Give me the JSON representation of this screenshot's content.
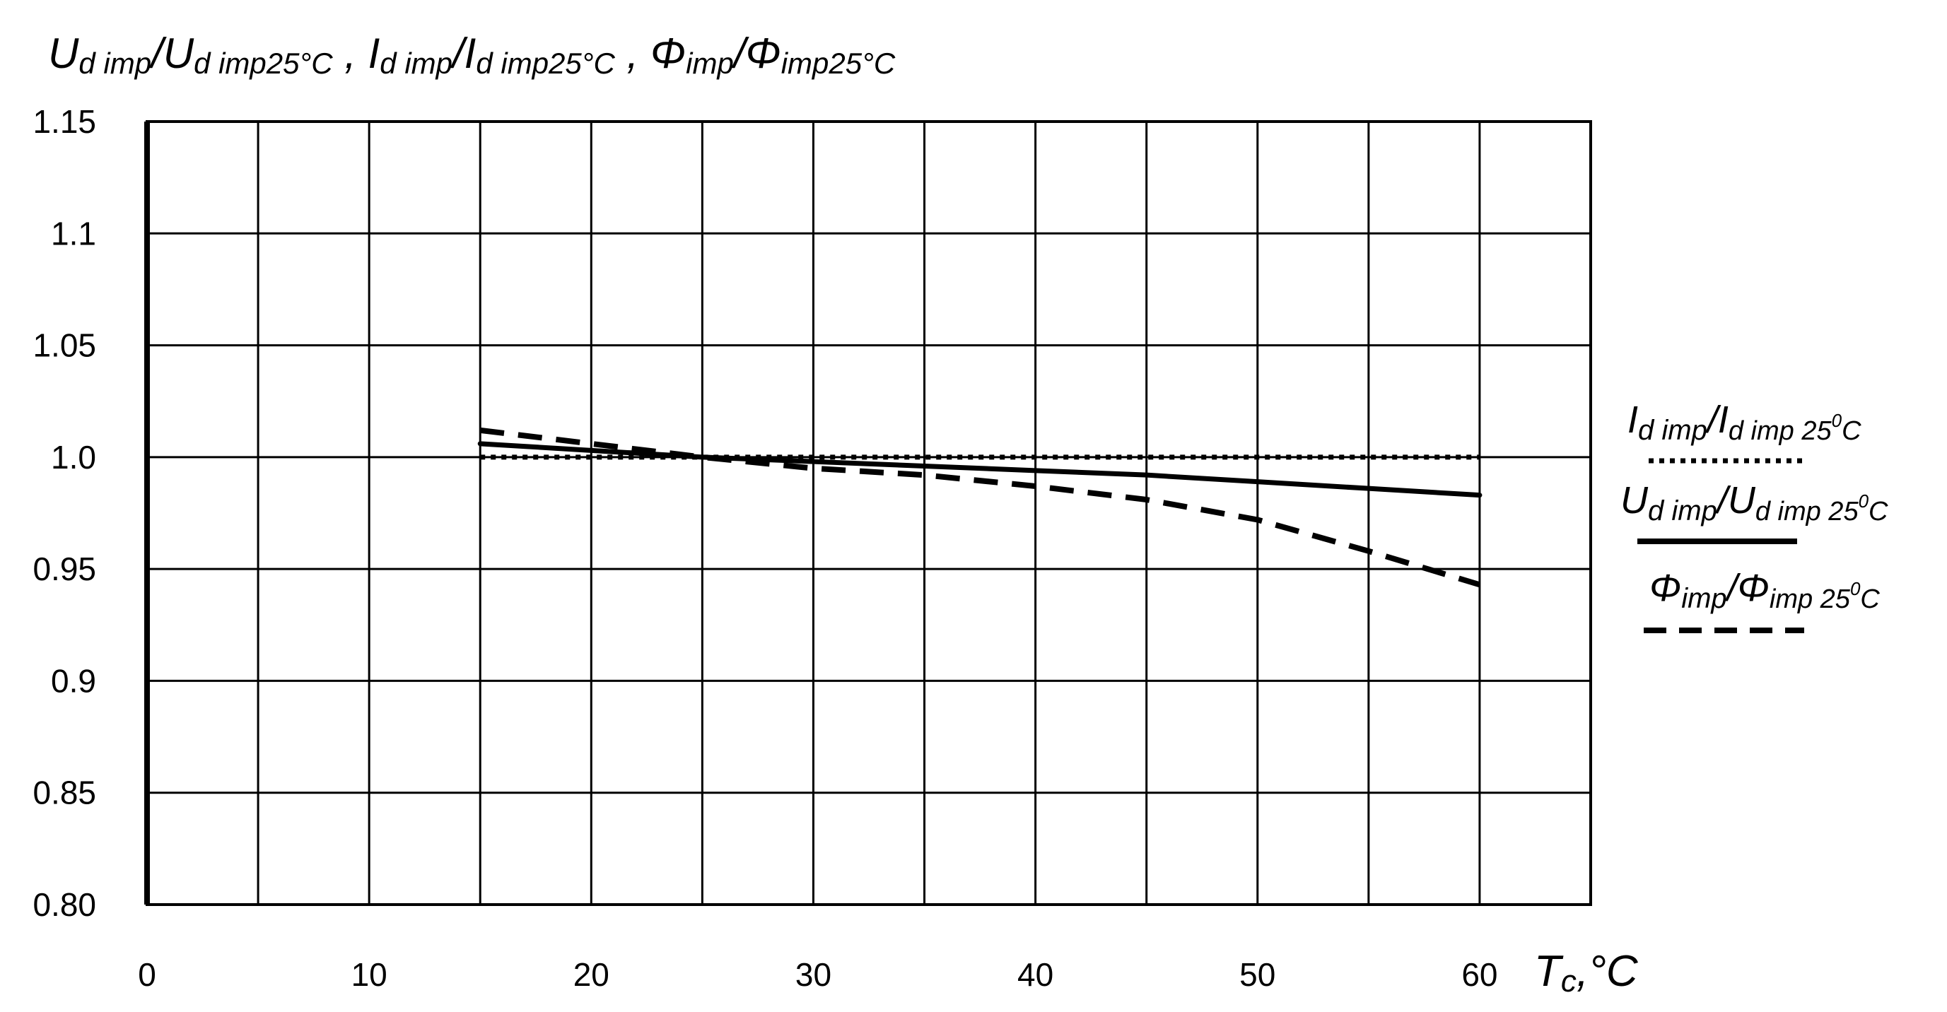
{
  "chart_data": {
    "type": "line",
    "title": "Ud imp/Ud imp25°C , Id imp/Id imp25°C , Φimp/Φimp25°C",
    "title_parts": {
      "u_main": "U",
      "u_sub": "d imp",
      "slash1": "/",
      "u_den_main": "U",
      "u_den_sub": "d imp25°C",
      "sep1": " , ",
      "i_main": "I",
      "i_sub": "d imp",
      "slash2": "/",
      "i_den_main": "I",
      "i_den_sub": "d imp25°C",
      "sep2": " , ",
      "phi_main": "Φ",
      "phi_sub": "imp",
      "slash3": "/",
      "phi_den_main": "Φ",
      "phi_den_sub": "imp25°C"
    },
    "xlabel": "Tc,°C",
    "xlabel_parts": {
      "main": "T",
      "sub": "c",
      "rest": ",°C"
    },
    "ylabel": "",
    "xlim": [
      0,
      65
    ],
    "ylim": [
      0.8,
      1.15
    ],
    "x_ticks": [
      0,
      10,
      20,
      30,
      40,
      50,
      60
    ],
    "x_tick_labels": [
      "0",
      "10",
      "20",
      "30",
      "40",
      "50",
      "60"
    ],
    "y_ticks": [
      1.15,
      1.1,
      1.05,
      1.0,
      0.95,
      0.9,
      0.85,
      0.8
    ],
    "y_tick_labels": [
      "1.15",
      "1.1",
      "1.05",
      "1.0",
      "0.95",
      "0.9",
      "0.85",
      "0.80"
    ],
    "grid": true,
    "grid_x_step": 5,
    "grid_y_step": 0.05,
    "legend_position": "right",
    "series": [
      {
        "name": "Id imp/Id imp25°C",
        "legend_main": "I",
        "legend_sub": "d imp",
        "legend_slash": "/",
        "legend_den_main": "I",
        "legend_den_sub": "d imp 25",
        "legend_deg": "0",
        "legend_unit": "C",
        "line_style": "dotted",
        "color": "#000000",
        "x": [
          15,
          20,
          25,
          30,
          35,
          40,
          45,
          50,
          55,
          60
        ],
        "y": [
          1.0,
          1.0,
          1.0,
          1.0,
          1.0,
          1.0,
          1.0,
          1.0,
          1.0,
          1.0
        ]
      },
      {
        "name": "Ud imp/Ud imp25°C",
        "legend_main": "U",
        "legend_sub": "d imp",
        "legend_slash": "/",
        "legend_den_main": "U",
        "legend_den_sub": "d imp 25",
        "legend_deg": "0",
        "legend_unit": "C",
        "line_style": "solid",
        "color": "#000000",
        "x": [
          15,
          20,
          25,
          30,
          35,
          40,
          45,
          50,
          55,
          60
        ],
        "y": [
          1.006,
          1.003,
          1.0,
          0.998,
          0.996,
          0.994,
          0.992,
          0.989,
          0.986,
          0.983
        ]
      },
      {
        "name": "Φimp/Φimp25°C",
        "legend_main": "Φ",
        "legend_sub": "imp",
        "legend_slash": "/",
        "legend_den_main": "Φ",
        "legend_den_sub": "imp 25",
        "legend_deg": "0",
        "legend_unit": "C",
        "line_style": "dashed",
        "color": "#000000",
        "x": [
          15,
          20,
          25,
          30,
          35,
          40,
          45,
          50,
          55,
          60
        ],
        "y": [
          1.012,
          1.006,
          1.0,
          0.995,
          0.992,
          0.987,
          0.981,
          0.972,
          0.958,
          0.943
        ]
      }
    ]
  }
}
